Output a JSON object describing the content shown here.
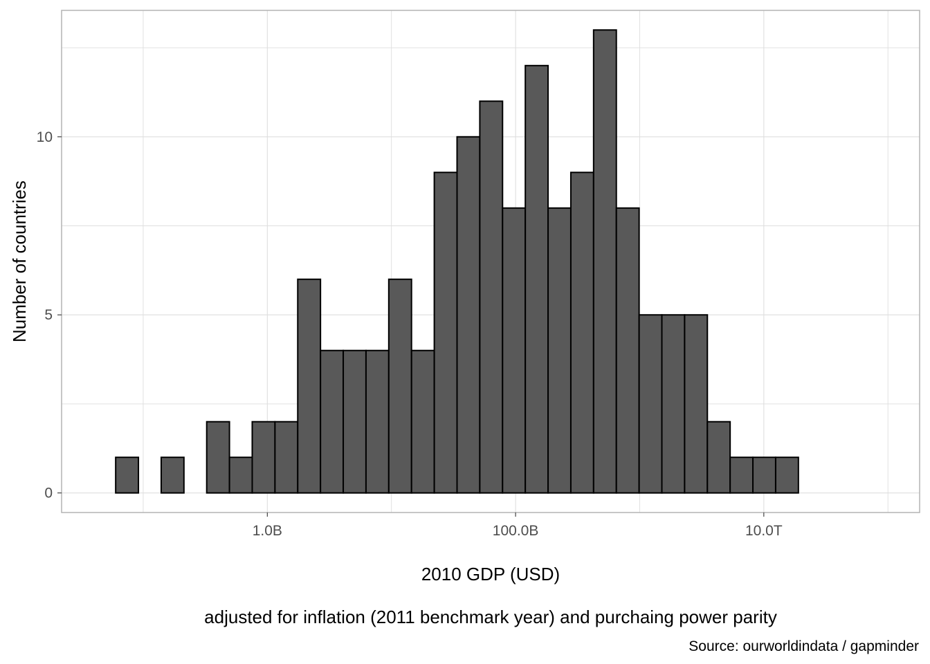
{
  "chart_data": {
    "type": "bar",
    "subtype": "histogram",
    "x_scale": "log10",
    "xlabel": "2010 GDP (USD)",
    "subtitle_below_axis": "adjusted for inflation (2011 benchmark year) and purchaing power parity",
    "ylabel": "Number of countries",
    "caption": "Source: ourworldindata / gapminder",
    "xlim": [
      22000000,
      180000000000000
    ],
    "ylim": [
      -0.55,
      13.55
    ],
    "x_ticks": [
      {
        "value": 1000000000,
        "label": "1.0B"
      },
      {
        "value": 100000000000,
        "label": "100.0B"
      },
      {
        "value": 10000000000000,
        "label": "10.0T"
      }
    ],
    "y_ticks": [
      {
        "value": 0,
        "label": "0"
      },
      {
        "value": 5,
        "label": "5"
      },
      {
        "value": 10,
        "label": "10"
      }
    ],
    "bins_start": 60000000,
    "bins_end": 19000000000000,
    "counts": [
      1,
      0,
      1,
      0,
      2,
      1,
      2,
      2,
      6,
      4,
      4,
      4,
      6,
      4,
      9,
      10,
      11,
      8,
      12,
      8,
      9,
      13,
      8,
      5,
      5,
      5,
      2,
      1,
      1,
      1
    ],
    "bar_fill": "#595959",
    "bar_stroke": "#000000",
    "grid": true,
    "panel_border": "#b3b3b3",
    "grid_color": "#dedede"
  }
}
